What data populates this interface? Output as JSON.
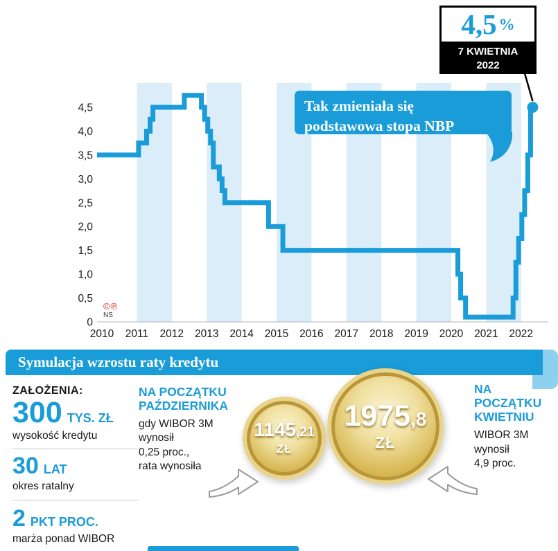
{
  "colors": {
    "accent": "#1a9cd8",
    "stripe": "#daedf8",
    "coin_gold": "#d9ba58",
    "callout_border": "#000000"
  },
  "top_callout": {
    "rate": "4,5",
    "percent_sign": "%",
    "date_line1": "7 KWIETNIA",
    "date_line2": "2022"
  },
  "bubble": {
    "line1": "Tak zmieniała się",
    "line2": "podstawowa stopa NBP"
  },
  "source_mark": {
    "symbols": "©℗",
    "ns": "NS"
  },
  "chart_data": {
    "type": "line",
    "title": "Tak zmieniała się podstawowa stopa NBP",
    "ylim": [
      0,
      4.75
    ],
    "x_ticks": [
      2010,
      2011,
      2012,
      2013,
      2014,
      2015,
      2016,
      2017,
      2018,
      2019,
      2020,
      2021,
      2022
    ],
    "y_ticks": [
      {
        "value": 0,
        "label": "0"
      },
      {
        "value": 0.5,
        "label": "0,5"
      },
      {
        "value": 1.0,
        "label": "1,0"
      },
      {
        "value": 1.5,
        "label": "1,5"
      },
      {
        "value": 2.0,
        "label": "2,0"
      },
      {
        "value": 2.5,
        "label": "2,5"
      },
      {
        "value": 3.0,
        "label": "3,0"
      },
      {
        "value": 3.5,
        "label": "3,5"
      },
      {
        "value": 4.0,
        "label": "4,0"
      },
      {
        "value": 4.5,
        "label": "4,5"
      }
    ],
    "points": [
      [
        2010.0,
        3.5
      ],
      [
        2011.05,
        3.75
      ],
      [
        2011.28,
        4.0
      ],
      [
        2011.38,
        4.25
      ],
      [
        2011.46,
        4.5
      ],
      [
        2012.36,
        4.75
      ],
      [
        2012.85,
        4.5
      ],
      [
        2012.94,
        4.25
      ],
      [
        2013.03,
        4.0
      ],
      [
        2013.11,
        3.75
      ],
      [
        2013.19,
        3.25
      ],
      [
        2013.36,
        3.0
      ],
      [
        2013.44,
        2.75
      ],
      [
        2013.52,
        2.5
      ],
      [
        2014.77,
        2.0
      ],
      [
        2015.18,
        1.5
      ],
      [
        2020.19,
        1.0
      ],
      [
        2020.27,
        0.5
      ],
      [
        2020.41,
        0.1
      ],
      [
        2021.77,
        0.5
      ],
      [
        2021.85,
        1.25
      ],
      [
        2021.93,
        1.75
      ],
      [
        2022.02,
        2.25
      ],
      [
        2022.1,
        2.75
      ],
      [
        2022.19,
        3.5
      ],
      [
        2022.27,
        4.5
      ],
      [
        2022.33,
        4.5
      ]
    ],
    "end_marker": {
      "x": 2022.33,
      "y": 4.5,
      "label": "4,5% — 7 kwietnia 2022"
    }
  },
  "simulation": {
    "header": "Symulacja wzrostu raty kredytu",
    "assumptions_title": "ZAŁOŻENIA:",
    "assumptions": [
      {
        "value": "300",
        "unit": "TYS. ZŁ",
        "desc": "wysokość kredytu"
      },
      {
        "value": "30",
        "unit": "LAT",
        "desc": "okres ratalny"
      },
      {
        "value": "2",
        "unit": "PKT PROC.",
        "desc": "marża ponad WIBOR"
      }
    ],
    "october": {
      "title": "NA POCZĄTKU\nPAŹDZIERNIKA",
      "desc": "gdy WIBOR 3M\nwynosił\n0,25 proc.,\nrata wynosiła"
    },
    "april": {
      "title": "NA\nPOCZĄTKU\nKWIETNIU",
      "desc": "WIBOR 3M\nwynosił\n4,9 proc."
    },
    "coin_october": {
      "amount": "1145",
      "decimal": ",21",
      "currency": "ZŁ"
    },
    "coin_april": {
      "amount": "1975",
      "decimal": ",8",
      "currency": "ZŁ"
    }
  }
}
